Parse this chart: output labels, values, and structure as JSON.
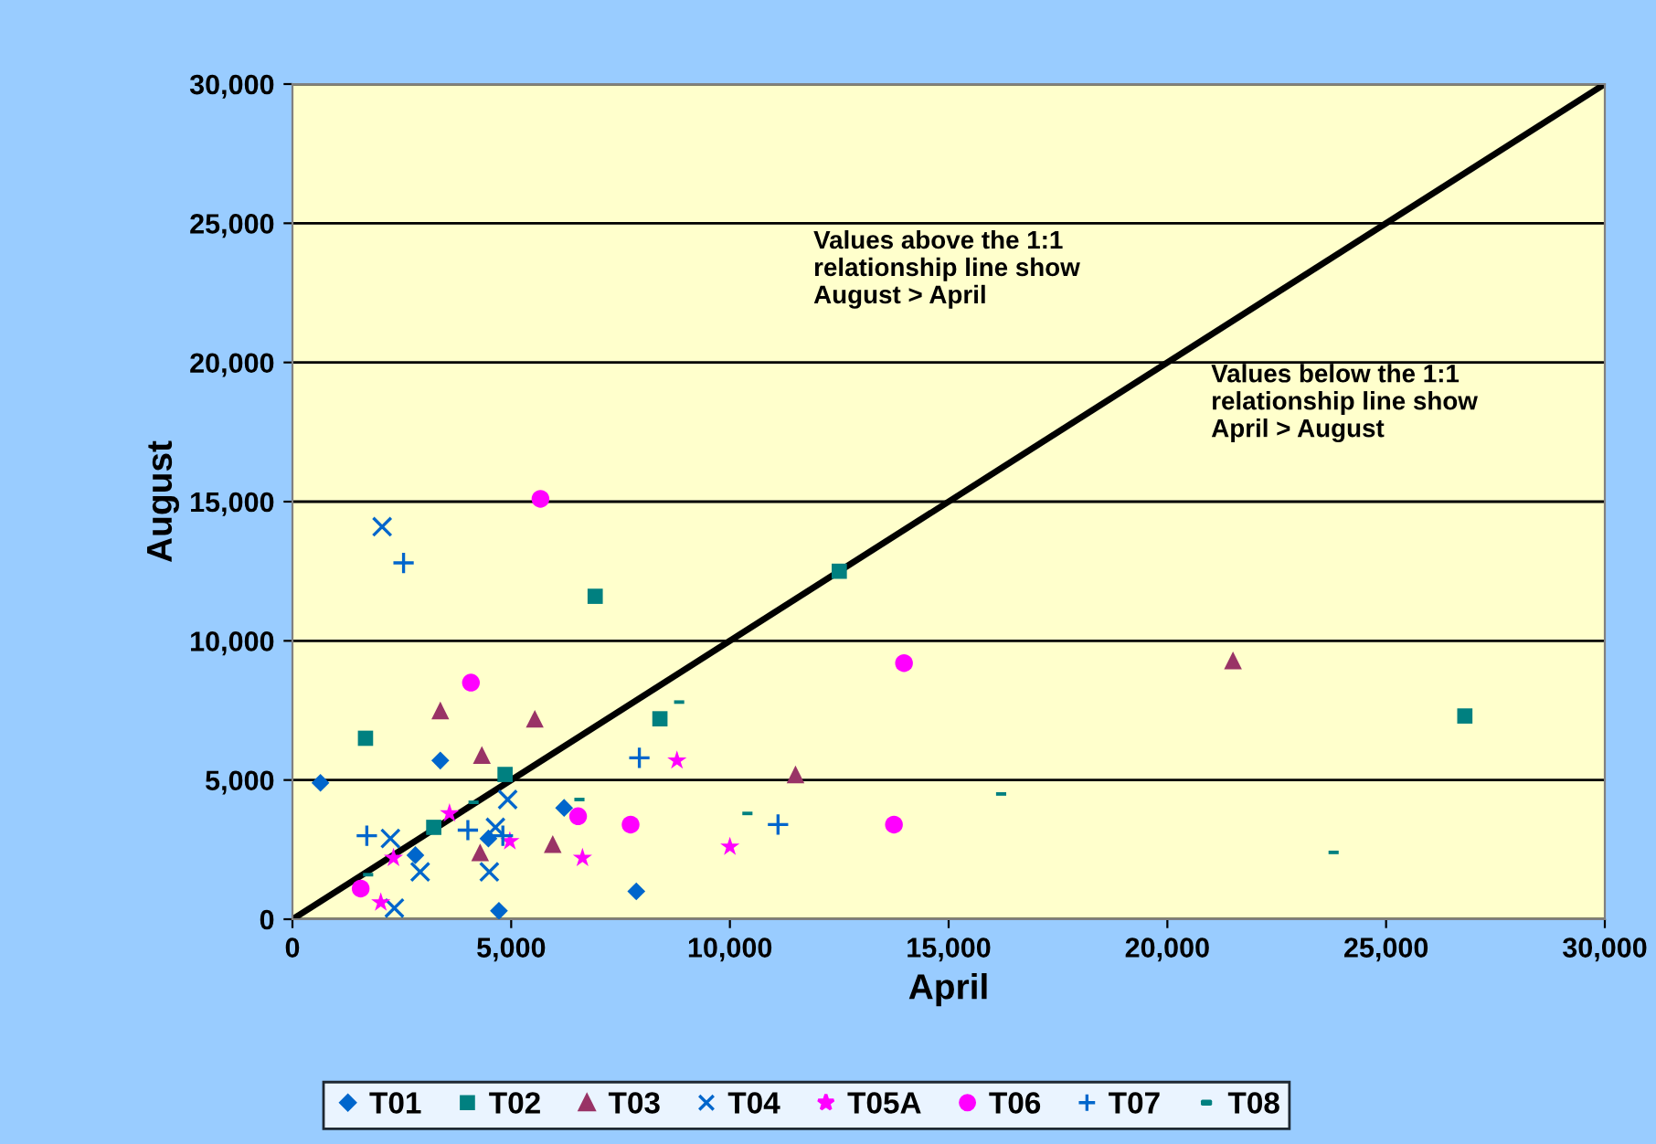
{
  "chart_data": {
    "type": "scatter",
    "xlabel": "April",
    "ylabel": "August",
    "xlim": [
      0,
      30000
    ],
    "ylim": [
      0,
      30000
    ],
    "xticks": [
      {
        "value": 0,
        "label": "0"
      },
      {
        "value": 5000,
        "label": "5,000"
      },
      {
        "value": 10000,
        "label": "10,000"
      },
      {
        "value": 15000,
        "label": "15,000"
      },
      {
        "value": 20000,
        "label": "20,000"
      },
      {
        "value": 25000,
        "label": "25,000"
      },
      {
        "value": 30000,
        "label": "30,000"
      }
    ],
    "yticks": [
      {
        "value": 0,
        "label": "0"
      },
      {
        "value": 5000,
        "label": "5,000"
      },
      {
        "value": 10000,
        "label": "10,000"
      },
      {
        "value": 15000,
        "label": "15,000"
      },
      {
        "value": 20000,
        "label": "20,000"
      },
      {
        "value": 25000,
        "label": "25,000"
      },
      {
        "value": 30000,
        "label": "30,000"
      }
    ],
    "grid": "y",
    "legend": "bottom",
    "annotations": [
      "Values above the 1:1\nrelationship line show\nAugust > April",
      "Values below the 1:1\nrelationship line show\nApril > August"
    ],
    "series": [
      {
        "name": "T01",
        "color": "#0066cc",
        "marker": "diamond",
        "x": [
          640,
          3380,
          2810,
          4480,
          6210,
          7860,
          4720
        ],
        "values": [
          4900,
          5700,
          2300,
          2900,
          4000,
          1000,
          300
        ]
      },
      {
        "name": "T02",
        "color": "#008080",
        "marker": "square",
        "x": [
          1670,
          4860,
          3230,
          8400,
          6920,
          12500,
          26800
        ],
        "values": [
          6500,
          5200,
          3300,
          7200,
          11600,
          12500,
          7300
        ]
      },
      {
        "name": "T03",
        "color": "#993366",
        "marker": "triangle",
        "x": [
          3380,
          5540,
          4330,
          5950,
          4290,
          11500,
          21500
        ],
        "values": [
          7500,
          7200,
          5900,
          2700,
          2400,
          5200,
          9300
        ]
      },
      {
        "name": "T04",
        "color": "#0066cc",
        "marker": "cross",
        "x": [
          2050,
          4920,
          2240,
          4640,
          2920,
          4500,
          2330
        ],
        "values": [
          14100,
          4300,
          2900,
          3300,
          1700,
          1700,
          400
        ]
      },
      {
        "name": "T05A",
        "color": "#ff00ff",
        "marker": "star",
        "x": [
          3590,
          2310,
          4970,
          6630,
          2020,
          8790,
          10000
        ],
        "values": [
          3800,
          2200,
          2800,
          2200,
          600,
          5700,
          2600
        ]
      },
      {
        "name": "T06",
        "color": "#ff00ff",
        "marker": "circle",
        "x": [
          5670,
          4080,
          6530,
          7730,
          1560,
          13980,
          13750
        ],
        "values": [
          15100,
          8500,
          3700,
          3400,
          1100,
          9200,
          3400
        ]
      },
      {
        "name": "T07",
        "color": "#0066cc",
        "marker": "plus",
        "x": [
          2540,
          7930,
          1700,
          4010,
          4810,
          11100
        ],
        "values": [
          12800,
          5800,
          3000,
          3200,
          3000,
          3400
        ]
      },
      {
        "name": "T08",
        "color": "#008080",
        "x": [
          4140,
          6560,
          1730,
          8840,
          10400,
          16200,
          23800
        ],
        "values": [
          4200,
          4300,
          1600,
          7800,
          3800,
          4500,
          2400
        ]
      },
      {
        "type": "line",
        "color": "#000000",
        "marker": "none",
        "x": [
          0,
          30000
        ],
        "values": [
          0,
          30000
        ]
      }
    ]
  }
}
